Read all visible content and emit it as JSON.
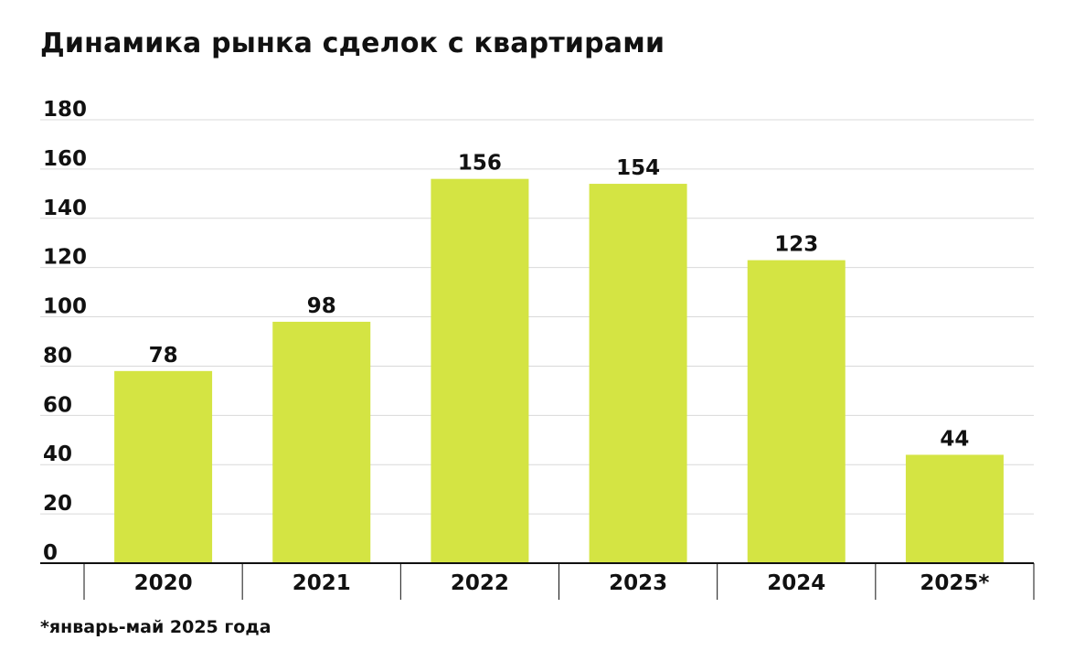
{
  "title": "Динамика рынка сделок с квартирами",
  "footnote": "*январь-май 2025 года",
  "chart_data": {
    "type": "bar",
    "title": "Динамика рынка сделок с квартирами",
    "xlabel": "",
    "ylabel": "",
    "categories": [
      "2020",
      "2021",
      "2022",
      "2023",
      "2024",
      "2025*"
    ],
    "values": [
      78,
      98,
      156,
      154,
      123,
      44
    ],
    "data_labels": [
      "78",
      "98",
      "156",
      "154",
      "123",
      "44"
    ],
    "ylim": [
      0,
      180
    ],
    "yticks": [
      0,
      20,
      40,
      60,
      80,
      100,
      120,
      140,
      160,
      180
    ],
    "ytick_labels": [
      "0",
      "20",
      "40",
      "60",
      "80",
      "100",
      "120",
      "140",
      "160",
      "180"
    ],
    "grid": true,
    "legend": "none",
    "colors": {
      "bar": "#d4e443",
      "grid": "#d9d9d9",
      "axis": "#111111",
      "text": "#111111"
    }
  }
}
